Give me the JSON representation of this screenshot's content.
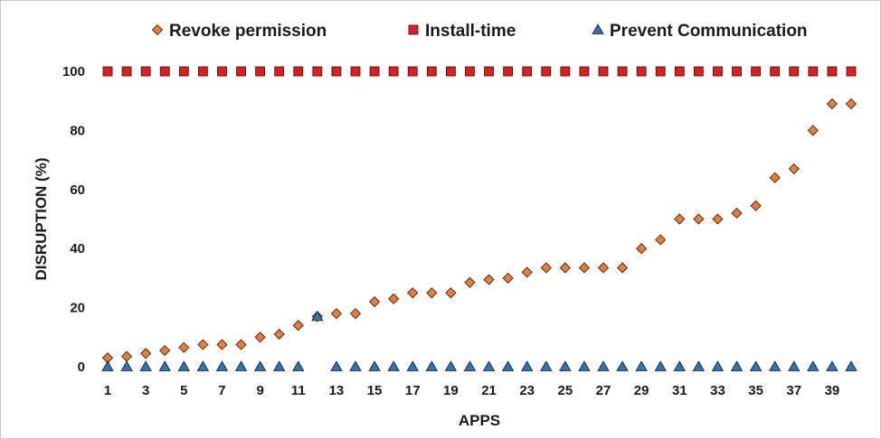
{
  "chart_data": {
    "type": "scatter",
    "title": "",
    "xlabel": "APPS",
    "ylabel": "DISRUPTION (%)",
    "ylim": [
      0,
      100
    ],
    "yticks": [
      0,
      20,
      40,
      60,
      80,
      100
    ],
    "xlim": [
      1,
      40
    ],
    "xticks": [
      1,
      3,
      5,
      7,
      9,
      11,
      13,
      15,
      17,
      19,
      21,
      23,
      25,
      27,
      29,
      31,
      33,
      35,
      37,
      39
    ],
    "grid": false,
    "legend_position": "top",
    "series": [
      {
        "name": "Revoke permission",
        "marker": "diamond",
        "color": "#ed7d31",
        "x": [
          1,
          2,
          3,
          4,
          5,
          6,
          7,
          8,
          9,
          10,
          11,
          12,
          13,
          14,
          15,
          16,
          17,
          18,
          19,
          20,
          21,
          22,
          23,
          24,
          25,
          26,
          27,
          28,
          29,
          30,
          31,
          32,
          33,
          34,
          35,
          36,
          37,
          38,
          39,
          40
        ],
        "values": [
          3,
          3.5,
          4.5,
          5.5,
          6.5,
          7.5,
          7.5,
          7.5,
          10,
          11,
          14,
          17,
          18,
          18,
          22,
          23,
          25,
          25,
          25,
          28.5,
          29.5,
          30,
          32,
          33.5,
          33.5,
          33.5,
          33.5,
          33.5,
          40,
          43,
          50,
          50,
          50,
          52,
          54.5,
          64,
          67,
          80,
          89,
          89
        ]
      },
      {
        "name": "Install-time",
        "marker": "square",
        "color": "#e31c1c",
        "x": [
          1,
          2,
          3,
          4,
          5,
          6,
          7,
          8,
          9,
          10,
          11,
          12,
          13,
          14,
          15,
          16,
          17,
          18,
          19,
          20,
          21,
          22,
          23,
          24,
          25,
          26,
          27,
          28,
          29,
          30,
          31,
          32,
          33,
          34,
          35,
          36,
          37,
          38,
          39,
          40
        ],
        "values": [
          100,
          100,
          100,
          100,
          100,
          100,
          100,
          100,
          100,
          100,
          100,
          100,
          100,
          100,
          100,
          100,
          100,
          100,
          100,
          100,
          100,
          100,
          100,
          100,
          100,
          100,
          100,
          100,
          100,
          100,
          100,
          100,
          100,
          100,
          100,
          100,
          100,
          100,
          100,
          100
        ]
      },
      {
        "name": "Prevent Communication",
        "marker": "triangle",
        "color": "#2e75b6",
        "x": [
          1,
          2,
          3,
          4,
          5,
          6,
          7,
          8,
          9,
          10,
          11,
          12,
          13,
          14,
          15,
          16,
          17,
          18,
          19,
          20,
          21,
          22,
          23,
          24,
          25,
          26,
          27,
          28,
          29,
          30,
          31,
          32,
          33,
          34,
          35,
          36,
          37,
          38,
          39,
          40
        ],
        "values": [
          0,
          0,
          0,
          0,
          0,
          0,
          0,
          0,
          0,
          0,
          0,
          17,
          0,
          0,
          0,
          0,
          0,
          0,
          0,
          0,
          0,
          0,
          0,
          0,
          0,
          0,
          0,
          0,
          0,
          0,
          0,
          0,
          0,
          0,
          0,
          0,
          0,
          0,
          0,
          0
        ]
      }
    ]
  }
}
